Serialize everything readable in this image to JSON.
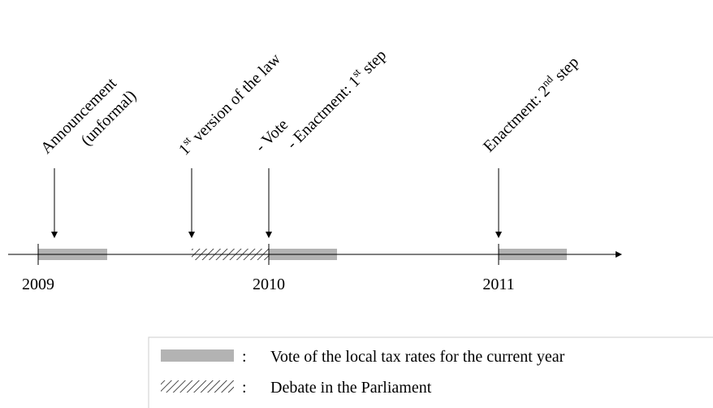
{
  "timeline": {
    "years": [
      "2009",
      "2010",
      "2011"
    ],
    "events": [
      {
        "lines": [
          {
            "text": "Announcement"
          },
          {
            "text": "(unformal)"
          }
        ]
      },
      {
        "lines": [
          {
            "text": "1",
            "sup": "st",
            "after": " version of the law"
          }
        ]
      },
      {
        "lines": [
          {
            "text": "- Vote"
          },
          {
            "text": "- Enactment: 1",
            "sup": "st",
            "after": " step"
          }
        ]
      },
      {
        "lines": [
          {
            "text": "Enactment: 2",
            "sup": "nd",
            "after": " step"
          }
        ]
      }
    ]
  },
  "legend": {
    "items": [
      {
        "separator": ":",
        "label": "Vote of the local tax rates for the current year"
      },
      {
        "separator": ":",
        "label": "Debate in the Parliament"
      }
    ]
  }
}
